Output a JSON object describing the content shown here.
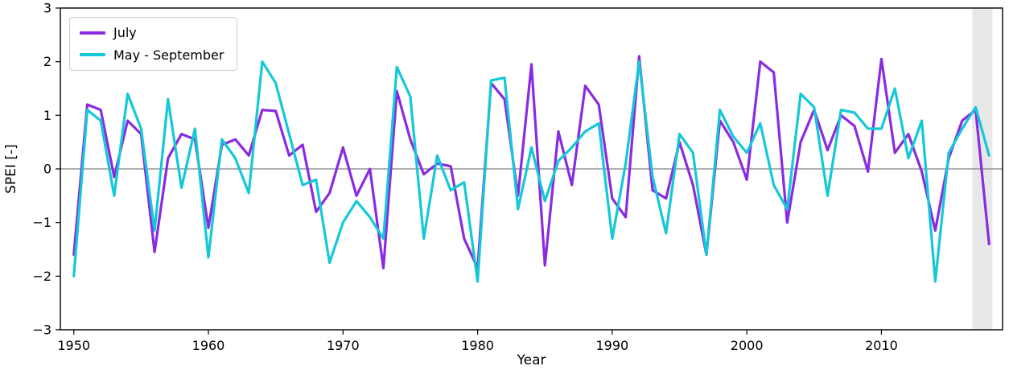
{
  "chart_data": {
    "type": "line",
    "title": "",
    "xlabel": "Year",
    "ylabel": "SPEI [-]",
    "xlim": [
      1949,
      2019
    ],
    "ylim": [
      -3,
      3
    ],
    "xticks": [
      1950,
      1960,
      1970,
      1980,
      1990,
      2000,
      2010
    ],
    "yticks": [
      -3,
      -2,
      -1,
      0,
      1,
      2,
      3
    ],
    "grid": false,
    "zero_line_color": "#808080",
    "legend_position": "upper-left",
    "highlight": {
      "start": 2016.75,
      "end": 2018.25,
      "color": "#e8e8e8"
    },
    "x": [
      1950,
      1951,
      1952,
      1953,
      1954,
      1955,
      1956,
      1957,
      1958,
      1959,
      1960,
      1961,
      1962,
      1963,
      1964,
      1965,
      1966,
      1967,
      1968,
      1969,
      1970,
      1971,
      1972,
      1973,
      1974,
      1975,
      1976,
      1977,
      1978,
      1979,
      1980,
      1981,
      1982,
      1983,
      1984,
      1985,
      1986,
      1987,
      1988,
      1989,
      1990,
      1991,
      1992,
      1993,
      1994,
      1995,
      1996,
      1997,
      1998,
      1999,
      2000,
      2001,
      2002,
      2003,
      2004,
      2005,
      2006,
      2007,
      2008,
      2009,
      2010,
      2011,
      2012,
      2013,
      2014,
      2015,
      2016,
      2017,
      2018
    ],
    "series": [
      {
        "name": "July",
        "color": "#8a2be2",
        "values": [
          -1.6,
          1.2,
          1.1,
          -0.15,
          0.9,
          0.65,
          -1.55,
          0.2,
          0.65,
          0.55,
          -1.1,
          0.45,
          0.55,
          0.25,
          1.1,
          1.08,
          0.25,
          0.45,
          -0.8,
          -0.45,
          0.4,
          -0.5,
          0.0,
          -1.85,
          1.45,
          0.55,
          -0.1,
          0.1,
          0.05,
          -1.3,
          -1.85,
          1.6,
          1.3,
          -0.5,
          1.95,
          -1.8,
          0.7,
          -0.3,
          1.55,
          1.2,
          -0.55,
          -0.9,
          2.1,
          -0.4,
          -0.55,
          0.5,
          -0.3,
          -1.6,
          0.9,
          0.5,
          -0.2,
          2.0,
          1.8,
          -1.0,
          0.5,
          1.1,
          0.35,
          1.0,
          0.8,
          -0.05,
          2.05,
          0.3,
          0.65,
          -0.05,
          -1.15,
          0.2,
          0.9,
          1.1,
          -1.4
        ]
      },
      {
        "name": "May - September",
        "color": "#14c8d8",
        "values": [
          -2.0,
          1.1,
          0.9,
          -0.5,
          1.4,
          0.75,
          -1.15,
          1.3,
          -0.35,
          0.75,
          -1.65,
          0.55,
          0.2,
          -0.45,
          2.0,
          1.6,
          0.65,
          -0.3,
          -0.2,
          -1.75,
          -1.0,
          -0.6,
          -0.9,
          -1.3,
          1.9,
          1.35,
          -1.3,
          0.25,
          -0.4,
          -0.25,
          -2.1,
          1.65,
          1.7,
          -0.75,
          0.4,
          -0.6,
          0.15,
          0.4,
          0.7,
          0.85,
          -1.3,
          0.1,
          2.0,
          -0.15,
          -1.2,
          0.65,
          0.3,
          -1.6,
          1.1,
          0.6,
          0.3,
          0.85,
          -0.3,
          -0.75,
          1.4,
          1.15,
          -0.5,
          1.1,
          1.05,
          0.75,
          0.75,
          1.5,
          0.2,
          0.9,
          -2.1,
          0.3,
          0.75,
          1.15,
          0.25
        ]
      }
    ]
  }
}
